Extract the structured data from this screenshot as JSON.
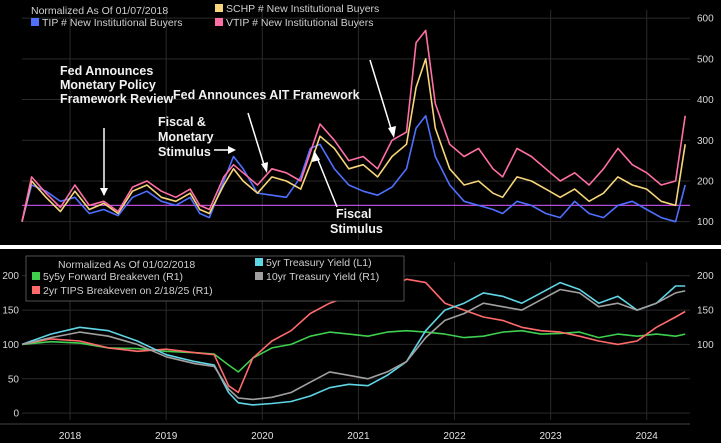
{
  "chart_data": [
    {
      "type": "line",
      "title": "Normalized As Of 01/07/2018",
      "xlim": [
        2018.0,
        2024.95
      ],
      "ylim": [
        55,
        620
      ],
      "yticks": [
        100,
        200,
        300,
        400,
        500,
        600
      ],
      "reference_line": 140,
      "series": [
        {
          "name": "TIP # New Institutional Buyers",
          "color": "#4f6fff",
          "x": [
            2018.0,
            2018.1,
            2018.25,
            2018.4,
            2018.55,
            2018.7,
            2018.85,
            2019.0,
            2019.15,
            2019.3,
            2019.45,
            2019.6,
            2019.75,
            2019.85,
            2019.95,
            2020.1,
            2020.2,
            2020.3,
            2020.45,
            2020.6,
            2020.75,
            2020.9,
            2021.0,
            2021.1,
            2021.25,
            2021.4,
            2021.55,
            2021.7,
            2021.85,
            2022.0,
            2022.1,
            2022.2,
            2022.3,
            2022.45,
            2022.6,
            2022.75,
            2022.9,
            2023.0,
            2023.15,
            2023.3,
            2023.45,
            2023.6,
            2023.75,
            2023.9,
            2024.05,
            2024.2,
            2024.35,
            2024.5,
            2024.65,
            2024.8,
            2024.9
          ],
          "values": [
            100,
            190,
            175,
            150,
            160,
            120,
            130,
            115,
            160,
            175,
            150,
            140,
            160,
            120,
            110,
            200,
            260,
            230,
            170,
            165,
            160,
            210,
            280,
            290,
            230,
            190,
            175,
            165,
            185,
            230,
            330,
            360,
            260,
            190,
            150,
            140,
            130,
            120,
            150,
            140,
            120,
            110,
            150,
            120,
            110,
            140,
            150,
            130,
            110,
            100,
            190
          ]
        },
        {
          "name": "SCHP # New Institutional Buyers",
          "color": "#f7d67a",
          "x": [
            2018.0,
            2018.1,
            2018.25,
            2018.4,
            2018.55,
            2018.7,
            2018.85,
            2019.0,
            2019.15,
            2019.3,
            2019.45,
            2019.6,
            2019.75,
            2019.85,
            2019.95,
            2020.1,
            2020.2,
            2020.3,
            2020.45,
            2020.6,
            2020.75,
            2020.9,
            2021.0,
            2021.1,
            2021.25,
            2021.4,
            2021.55,
            2021.7,
            2021.85,
            2022.0,
            2022.1,
            2022.2,
            2022.3,
            2022.45,
            2022.6,
            2022.75,
            2022.9,
            2023.0,
            2023.15,
            2023.3,
            2023.45,
            2023.6,
            2023.75,
            2023.9,
            2024.05,
            2024.2,
            2024.35,
            2024.5,
            2024.65,
            2024.8,
            2024.9
          ],
          "values": [
            100,
            200,
            160,
            125,
            175,
            130,
            145,
            120,
            175,
            190,
            160,
            150,
            170,
            130,
            120,
            190,
            230,
            200,
            170,
            210,
            200,
            180,
            240,
            310,
            280,
            230,
            240,
            210,
            260,
            290,
            430,
            500,
            330,
            230,
            190,
            200,
            170,
            160,
            210,
            200,
            180,
            160,
            180,
            150,
            170,
            210,
            190,
            180,
            150,
            140,
            290
          ]
        },
        {
          "name": "VTIP # New Institutional Buyers",
          "color": "#ff6fa5",
          "x": [
            2018.0,
            2018.1,
            2018.25,
            2018.4,
            2018.55,
            2018.7,
            2018.85,
            2019.0,
            2019.15,
            2019.3,
            2019.45,
            2019.6,
            2019.75,
            2019.85,
            2019.95,
            2020.1,
            2020.2,
            2020.3,
            2020.45,
            2020.6,
            2020.75,
            2020.9,
            2021.0,
            2021.1,
            2021.25,
            2021.4,
            2021.55,
            2021.7,
            2021.85,
            2022.0,
            2022.1,
            2022.2,
            2022.3,
            2022.45,
            2022.6,
            2022.75,
            2022.9,
            2023.0,
            2023.15,
            2023.3,
            2023.45,
            2023.6,
            2023.75,
            2023.9,
            2024.05,
            2024.2,
            2024.35,
            2024.5,
            2024.65,
            2024.8,
            2024.9
          ],
          "values": [
            100,
            210,
            170,
            135,
            190,
            140,
            150,
            125,
            185,
            200,
            175,
            160,
            180,
            140,
            130,
            210,
            240,
            220,
            190,
            230,
            220,
            200,
            270,
            340,
            300,
            250,
            260,
            230,
            300,
            320,
            540,
            570,
            390,
            290,
            260,
            280,
            230,
            210,
            280,
            260,
            230,
            200,
            220,
            190,
            230,
            280,
            240,
            220,
            190,
            200,
            360
          ]
        }
      ]
    },
    {
      "type": "line",
      "title": "Normalized As Of 01/02/2018",
      "xlim": [
        2018.0,
        2024.95
      ],
      "ylim": [
        -10,
        220
      ],
      "yticks": [
        0,
        50,
        100,
        150,
        200
      ],
      "yticks_right": [
        100,
        150,
        200
      ],
      "series": [
        {
          "name": "5y5y Forward Breakeven (R1)",
          "color": "#3fcf4f",
          "x": [
            2018.0,
            2018.3,
            2018.6,
            2018.9,
            2019.2,
            2019.5,
            2019.8,
            2020.0,
            2020.15,
            2020.25,
            2020.4,
            2020.6,
            2020.8,
            2021.0,
            2021.2,
            2021.4,
            2021.6,
            2021.8,
            2022.0,
            2022.2,
            2022.4,
            2022.6,
            2022.8,
            2023.0,
            2023.2,
            2023.4,
            2023.6,
            2023.8,
            2024.0,
            2024.2,
            2024.4,
            2024.6,
            2024.8,
            2024.9
          ],
          "values": [
            100,
            104,
            102,
            95,
            94,
            90,
            88,
            86,
            70,
            60,
            80,
            95,
            100,
            112,
            118,
            115,
            112,
            118,
            120,
            118,
            115,
            110,
            112,
            118,
            120,
            115,
            116,
            118,
            110,
            115,
            112,
            115,
            112,
            115
          ]
        },
        {
          "name": "2yr TIPS Breakeven on 2/18/25 (R1)",
          "color": "#ff6a6a",
          "x": [
            2018.0,
            2018.3,
            2018.6,
            2018.9,
            2019.2,
            2019.5,
            2019.8,
            2020.0,
            2020.15,
            2020.25,
            2020.4,
            2020.6,
            2020.8,
            2021.0,
            2021.2,
            2021.4,
            2021.6,
            2021.8,
            2022.0,
            2022.2,
            2022.4,
            2022.6,
            2022.8,
            2023.0,
            2023.2,
            2023.4,
            2023.6,
            2023.8,
            2024.0,
            2024.2,
            2024.4,
            2024.6,
            2024.8,
            2024.9
          ],
          "values": [
            100,
            108,
            105,
            95,
            90,
            93,
            88,
            85,
            40,
            30,
            80,
            105,
            120,
            145,
            160,
            170,
            165,
            180,
            195,
            190,
            160,
            150,
            140,
            135,
            125,
            120,
            118,
            112,
            105,
            100,
            105,
            125,
            140,
            148
          ]
        },
        {
          "name": "5yr Treasury Yield (L1)",
          "color": "#5fd6e6",
          "x": [
            2018.0,
            2018.3,
            2018.6,
            2018.9,
            2019.2,
            2019.5,
            2019.8,
            2020.0,
            2020.15,
            2020.25,
            2020.4,
            2020.6,
            2020.8,
            2021.0,
            2021.2,
            2021.4,
            2021.6,
            2021.8,
            2022.0,
            2022.2,
            2022.4,
            2022.6,
            2022.8,
            2023.0,
            2023.2,
            2023.4,
            2023.6,
            2023.8,
            2024.0,
            2024.2,
            2024.4,
            2024.6,
            2024.8,
            2024.9
          ],
          "values": [
            100,
            115,
            125,
            120,
            105,
            85,
            75,
            70,
            30,
            15,
            12,
            14,
            17,
            25,
            37,
            42,
            40,
            55,
            75,
            120,
            150,
            160,
            175,
            170,
            160,
            175,
            190,
            180,
            160,
            170,
            150,
            160,
            185,
            185
          ]
        },
        {
          "name": "10yr Treasury Yield (R1)",
          "color": "#a0a0a0",
          "x": [
            2018.0,
            2018.3,
            2018.6,
            2018.9,
            2019.2,
            2019.5,
            2019.8,
            2020.0,
            2020.15,
            2020.25,
            2020.4,
            2020.6,
            2020.8,
            2021.0,
            2021.2,
            2021.4,
            2021.6,
            2021.8,
            2022.0,
            2022.2,
            2022.4,
            2022.6,
            2022.8,
            2023.0,
            2023.2,
            2023.4,
            2023.6,
            2023.8,
            2024.0,
            2024.2,
            2024.4,
            2024.6,
            2024.8,
            2024.9
          ],
          "values": [
            100,
            110,
            118,
            112,
            100,
            82,
            72,
            68,
            35,
            22,
            20,
            23,
            30,
            45,
            60,
            55,
            50,
            60,
            75,
            110,
            135,
            145,
            160,
            155,
            150,
            165,
            180,
            175,
            155,
            160,
            150,
            160,
            175,
            178
          ]
        }
      ]
    }
  ],
  "x_axis": {
    "years": [
      "2018",
      "2019",
      "2020",
      "2021",
      "2022",
      "2023",
      "2024"
    ]
  },
  "annotations": [
    {
      "text": [
        "Fed Announces",
        "Monetary Policy",
        "Framework Review"
      ]
    },
    {
      "text": [
        "Fed Announces AIT Framework"
      ]
    },
    {
      "text": [
        "Fiscal &",
        "Monetary",
        "Stimulus"
      ]
    },
    {
      "text": [
        "Fiscal",
        "Stimulus"
      ]
    }
  ],
  "colors": {
    "background": "#000000",
    "divider": "#ffffff",
    "grid": "#2a2a2a",
    "reference_line": "#b44bd6"
  }
}
